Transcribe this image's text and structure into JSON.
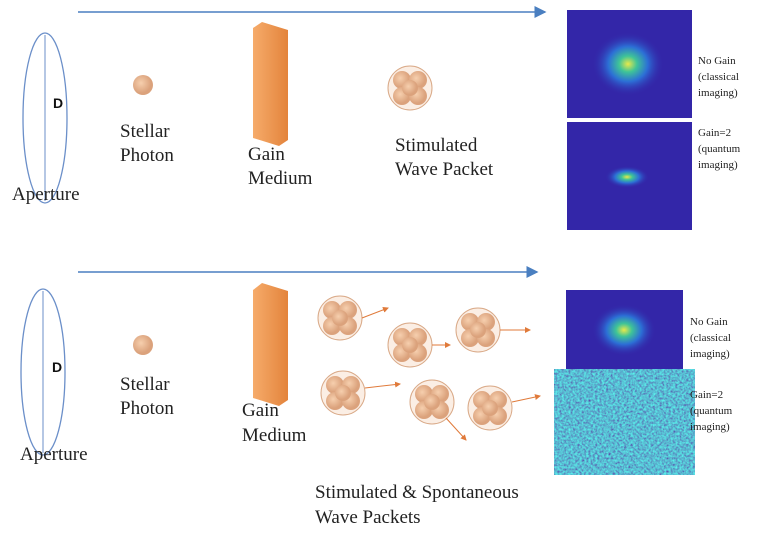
{
  "panels": [
    {
      "diameter_label": "D",
      "aperture_label": "Aperture",
      "photon_label": [
        "Stellar",
        "Photon"
      ],
      "medium_label": [
        "Gain",
        "Medium"
      ],
      "packet_label": [
        "Stimulated",
        "Wave Packet"
      ],
      "images": [
        {
          "label": [
            "No Gain",
            "(classical",
            "imaging)"
          ]
        },
        {
          "label": [
            "Gain=2",
            "(quantum",
            "imaging)"
          ]
        }
      ]
    },
    {
      "diameter_label": "D",
      "aperture_label": "Aperture",
      "photon_label": [
        "Stellar",
        "Photon"
      ],
      "medium_label": [
        "Gain",
        "Medium"
      ],
      "packet_label": [
        "Stimulated & Spontaneous",
        "Wave Packets"
      ],
      "images": [
        {
          "label": [
            "No Gain",
            "(classical",
            "imaging)"
          ]
        },
        {
          "label": [
            "Gain=2",
            "(quantum",
            "imaging)"
          ]
        }
      ]
    }
  ]
}
